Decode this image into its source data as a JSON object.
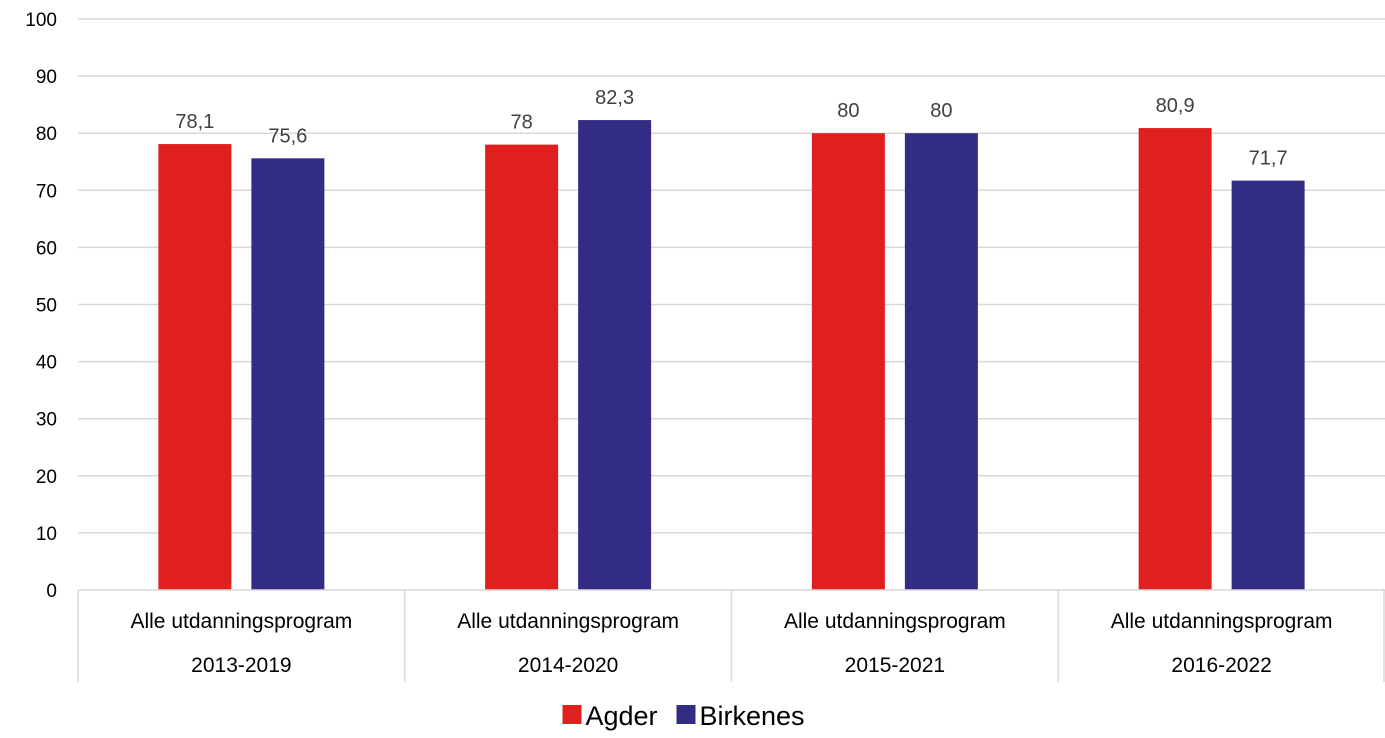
{
  "chart_data": {
    "type": "bar",
    "title": "",
    "xlabel": "",
    "ylabel": "",
    "ylim": [
      0,
      100
    ],
    "yticks": [
      0,
      10,
      20,
      30,
      40,
      50,
      60,
      70,
      80,
      90,
      100
    ],
    "grid": true,
    "legend_position": "bottom",
    "categories": [
      {
        "program": "Alle utdanningsprogram",
        "period": "2013-2019"
      },
      {
        "program": "Alle utdanningsprogram",
        "period": "2014-2020"
      },
      {
        "program": "Alle utdanningsprogram",
        "period": "2015-2021"
      },
      {
        "program": "Alle utdanningsprogram",
        "period": "2016-2022"
      }
    ],
    "series": [
      {
        "name": "Agder",
        "color": "#e01f1f",
        "values": [
          78.1,
          78,
          80,
          80.9
        ],
        "labels": [
          "78,1",
          "78",
          "80",
          "80,9"
        ]
      },
      {
        "name": "Birkenes",
        "color": "#332c85",
        "values": [
          75.6,
          82.3,
          80,
          71.7
        ],
        "labels": [
          "75,6",
          "82,3",
          "80",
          "71,7"
        ]
      }
    ]
  }
}
